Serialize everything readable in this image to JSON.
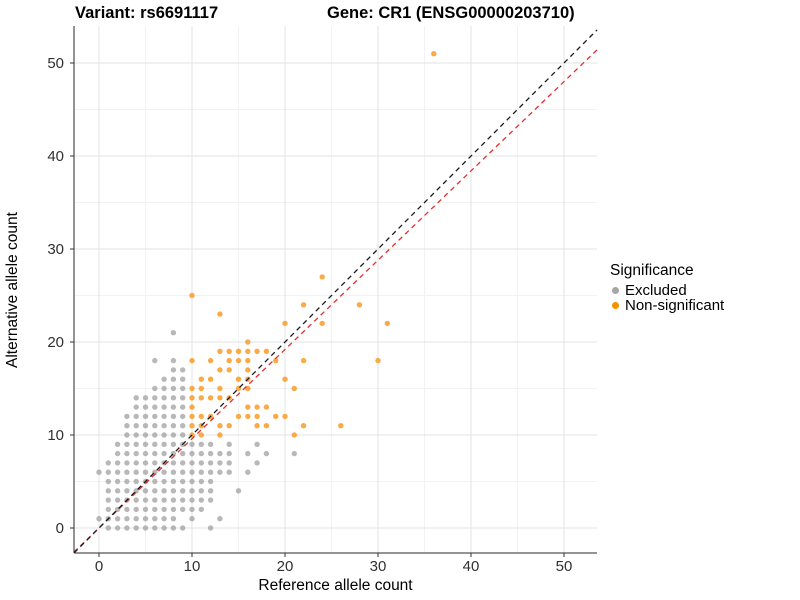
{
  "titles": {
    "left": "Variant: rs6691117",
    "right": "Gene: CR1 (ENSG00000203710)"
  },
  "axes": {
    "x": {
      "label": "Reference allele count",
      "ticks": [
        0,
        10,
        20,
        30,
        40,
        50
      ],
      "minor": [
        5,
        15,
        25,
        35,
        45
      ]
    },
    "y": {
      "label": "Alternative allele count",
      "ticks": [
        0,
        10,
        20,
        30,
        40,
        50
      ],
      "minor": [
        5,
        15,
        25,
        35,
        45
      ]
    }
  },
  "legend": {
    "title": "Significance",
    "items": [
      {
        "label": "Excluded",
        "color": "#A6A6A6"
      },
      {
        "label": "Non-significant",
        "color": "#F69100"
      }
    ]
  },
  "chart_data": {
    "type": "scatter",
    "xlabel": "Reference allele count",
    "ylabel": "Alternative allele count",
    "xlim": [
      -2.7,
      53.5
    ],
    "ylim": [
      -2.7,
      54
    ],
    "grid": true,
    "legend_position": "right",
    "series": [
      {
        "name": "Excluded",
        "color": "#9A9A9A",
        "opacity": 0.7,
        "points": [
          [
            1,
            0
          ],
          [
            2,
            0
          ],
          [
            3,
            0
          ],
          [
            4,
            0
          ],
          [
            5,
            0
          ],
          [
            6,
            0
          ],
          [
            7,
            0
          ],
          [
            8,
            0
          ],
          [
            9,
            0
          ],
          [
            12,
            0
          ],
          [
            0,
            1
          ],
          [
            1,
            1
          ],
          [
            2,
            1
          ],
          [
            3,
            1
          ],
          [
            4,
            1
          ],
          [
            5,
            1
          ],
          [
            6,
            1
          ],
          [
            7,
            1
          ],
          [
            8,
            1
          ],
          [
            10,
            1
          ],
          [
            13,
            1
          ],
          [
            1,
            2
          ],
          [
            2,
            2
          ],
          [
            3,
            2
          ],
          [
            4,
            2
          ],
          [
            5,
            2
          ],
          [
            6,
            2
          ],
          [
            7,
            2
          ],
          [
            8,
            2
          ],
          [
            9,
            2
          ],
          [
            10,
            2
          ],
          [
            11,
            2
          ],
          [
            1,
            3
          ],
          [
            2,
            3
          ],
          [
            3,
            3
          ],
          [
            4,
            3
          ],
          [
            5,
            3
          ],
          [
            6,
            3
          ],
          [
            7,
            3
          ],
          [
            8,
            3
          ],
          [
            9,
            3
          ],
          [
            10,
            3
          ],
          [
            11,
            3
          ],
          [
            12,
            3
          ],
          [
            1,
            4
          ],
          [
            2,
            4
          ],
          [
            3,
            4
          ],
          [
            4,
            4
          ],
          [
            5,
            4
          ],
          [
            6,
            4
          ],
          [
            7,
            4
          ],
          [
            8,
            4
          ],
          [
            9,
            4
          ],
          [
            10,
            4
          ],
          [
            11,
            4
          ],
          [
            12,
            4
          ],
          [
            15,
            4
          ],
          [
            1,
            5
          ],
          [
            2,
            5
          ],
          [
            3,
            5
          ],
          [
            4,
            5
          ],
          [
            5,
            5
          ],
          [
            6,
            5
          ],
          [
            7,
            5
          ],
          [
            8,
            5
          ],
          [
            9,
            5
          ],
          [
            10,
            5
          ],
          [
            11,
            5
          ],
          [
            12,
            5
          ],
          [
            0,
            6
          ],
          [
            1,
            6
          ],
          [
            2,
            6
          ],
          [
            3,
            6
          ],
          [
            4,
            6
          ],
          [
            5,
            6
          ],
          [
            6,
            6
          ],
          [
            7,
            6
          ],
          [
            8,
            6
          ],
          [
            9,
            6
          ],
          [
            10,
            6
          ],
          [
            11,
            6
          ],
          [
            12,
            6
          ],
          [
            13,
            6
          ],
          [
            14,
            6
          ],
          [
            16,
            6
          ],
          [
            1,
            7
          ],
          [
            2,
            7
          ],
          [
            3,
            7
          ],
          [
            4,
            7
          ],
          [
            5,
            7
          ],
          [
            6,
            7
          ],
          [
            7,
            7
          ],
          [
            8,
            7
          ],
          [
            9,
            7
          ],
          [
            10,
            7
          ],
          [
            11,
            7
          ],
          [
            12,
            7
          ],
          [
            13,
            7
          ],
          [
            14,
            7
          ],
          [
            17,
            7
          ],
          [
            2,
            8
          ],
          [
            3,
            8
          ],
          [
            4,
            8
          ],
          [
            5,
            8
          ],
          [
            6,
            8
          ],
          [
            7,
            8
          ],
          [
            8,
            8
          ],
          [
            9,
            8
          ],
          [
            10,
            8
          ],
          [
            11,
            8
          ],
          [
            12,
            8
          ],
          [
            13,
            8
          ],
          [
            14,
            8
          ],
          [
            16,
            8
          ],
          [
            18,
            8
          ],
          [
            21,
            8
          ],
          [
            2,
            9
          ],
          [
            3,
            9
          ],
          [
            4,
            9
          ],
          [
            5,
            9
          ],
          [
            6,
            9
          ],
          [
            7,
            9
          ],
          [
            8,
            9
          ],
          [
            9,
            9
          ],
          [
            10,
            9
          ],
          [
            11,
            9
          ],
          [
            12,
            9
          ],
          [
            14,
            9
          ],
          [
            17,
            9
          ],
          [
            3,
            10
          ],
          [
            4,
            10
          ],
          [
            5,
            10
          ],
          [
            6,
            10
          ],
          [
            7,
            10
          ],
          [
            8,
            10
          ],
          [
            9,
            10
          ],
          [
            3,
            11
          ],
          [
            4,
            11
          ],
          [
            5,
            11
          ],
          [
            6,
            11
          ],
          [
            7,
            11
          ],
          [
            8,
            11
          ],
          [
            9,
            11
          ],
          [
            3,
            12
          ],
          [
            4,
            12
          ],
          [
            5,
            12
          ],
          [
            6,
            12
          ],
          [
            7,
            12
          ],
          [
            8,
            12
          ],
          [
            9,
            12
          ],
          [
            4,
            13
          ],
          [
            5,
            13
          ],
          [
            6,
            13
          ],
          [
            7,
            13
          ],
          [
            8,
            13
          ],
          [
            9,
            13
          ],
          [
            4,
            14
          ],
          [
            5,
            14
          ],
          [
            6,
            14
          ],
          [
            7,
            14
          ],
          [
            8,
            14
          ],
          [
            9,
            14
          ],
          [
            6,
            15
          ],
          [
            7,
            15
          ],
          [
            8,
            15
          ],
          [
            9,
            15
          ],
          [
            7,
            16
          ],
          [
            8,
            16
          ],
          [
            9,
            16
          ],
          [
            8,
            17
          ],
          [
            9,
            17
          ],
          [
            6,
            18
          ],
          [
            8,
            18
          ],
          [
            8,
            21
          ]
        ]
      },
      {
        "name": "Non-significant",
        "color": "#F9A132",
        "opacity": 0.9,
        "points": [
          [
            10,
            10
          ],
          [
            11,
            10
          ],
          [
            13,
            10
          ],
          [
            21,
            10
          ],
          [
            10,
            11
          ],
          [
            11,
            11
          ],
          [
            13,
            11
          ],
          [
            14,
            11
          ],
          [
            17,
            11
          ],
          [
            18,
            11
          ],
          [
            22,
            11
          ],
          [
            26,
            11
          ],
          [
            10,
            12
          ],
          [
            11,
            12
          ],
          [
            12,
            12
          ],
          [
            15,
            12
          ],
          [
            16,
            12
          ],
          [
            17,
            12
          ],
          [
            19,
            12
          ],
          [
            20,
            12
          ],
          [
            10,
            13
          ],
          [
            16,
            13
          ],
          [
            17,
            13
          ],
          [
            18,
            13
          ],
          [
            10,
            14
          ],
          [
            11,
            14
          ],
          [
            12,
            14
          ],
          [
            13,
            14
          ],
          [
            14,
            14
          ],
          [
            10,
            15
          ],
          [
            11,
            15
          ],
          [
            13,
            15
          ],
          [
            15,
            15
          ],
          [
            16,
            15
          ],
          [
            21,
            15
          ],
          [
            11,
            16
          ],
          [
            12,
            16
          ],
          [
            15,
            16
          ],
          [
            16,
            16
          ],
          [
            20,
            16
          ],
          [
            13,
            17
          ],
          [
            14,
            17
          ],
          [
            16,
            17
          ],
          [
            10,
            18
          ],
          [
            12,
            18
          ],
          [
            14,
            18
          ],
          [
            15,
            18
          ],
          [
            16,
            18
          ],
          [
            19,
            18
          ],
          [
            22,
            18
          ],
          [
            30,
            18
          ],
          [
            13,
            19
          ],
          [
            14,
            19
          ],
          [
            15,
            19
          ],
          [
            16,
            19
          ],
          [
            17,
            19
          ],
          [
            18,
            19
          ],
          [
            16,
            20
          ],
          [
            20,
            22
          ],
          [
            24,
            22
          ],
          [
            31,
            22
          ],
          [
            13,
            23
          ],
          [
            22,
            24
          ],
          [
            28,
            24
          ],
          [
            10,
            25
          ],
          [
            24,
            27
          ],
          [
            36,
            51
          ]
        ]
      }
    ],
    "lines": [
      {
        "name": "identity",
        "style": "dashed",
        "color": "#1A1A1A",
        "slope": 1,
        "intercept": 0
      },
      {
        "name": "regression",
        "style": "dashed",
        "color": "#E62E2E",
        "slope": 0.96,
        "intercept": 0
      }
    ]
  }
}
